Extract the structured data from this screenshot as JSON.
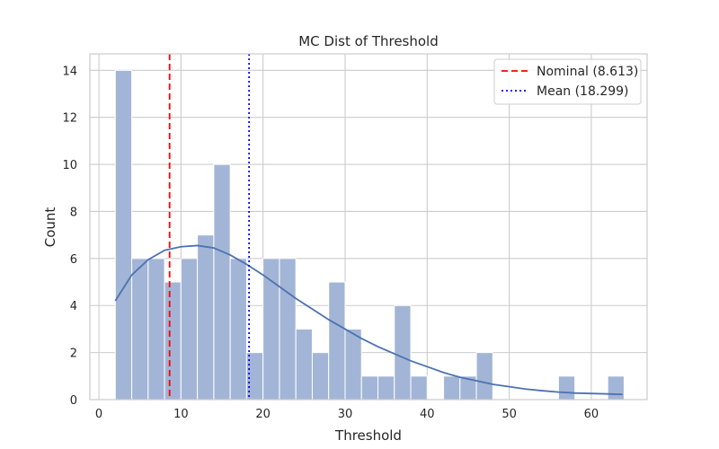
{
  "chart_data": {
    "type": "bar",
    "title": "MC Dist of Threshold",
    "xlabel": "Threshold",
    "ylabel": "Count",
    "xlim": [
      -1.1,
      66.8
    ],
    "ylim": [
      0,
      14.7
    ],
    "xticks": [
      0,
      10,
      20,
      30,
      40,
      50,
      60
    ],
    "yticks": [
      0,
      2,
      4,
      6,
      8,
      10,
      12,
      14
    ],
    "grid": true,
    "bin_start": 2.0,
    "bin_width": 2.0,
    "counts": [
      14,
      6,
      6,
      5,
      6,
      7,
      10,
      6,
      2,
      6,
      6,
      3,
      2,
      5,
      3,
      1,
      1,
      4,
      1,
      0,
      1,
      1,
      2,
      0,
      0,
      0,
      0,
      1,
      0,
      0,
      1
    ],
    "kde": {
      "x": [
        2,
        4,
        6,
        8,
        10,
        12,
        14,
        16,
        18,
        20,
        22,
        24,
        26,
        28,
        30,
        32,
        34,
        36,
        38,
        40,
        42,
        44,
        46,
        48,
        50,
        52,
        54,
        56,
        58,
        60,
        62,
        63.8
      ],
      "y": [
        4.2,
        5.3,
        5.95,
        6.35,
        6.5,
        6.55,
        6.45,
        6.15,
        5.75,
        5.3,
        4.8,
        4.3,
        3.85,
        3.4,
        3.0,
        2.6,
        2.25,
        1.95,
        1.65,
        1.4,
        1.15,
        0.95,
        0.8,
        0.65,
        0.55,
        0.45,
        0.38,
        0.32,
        0.28,
        0.26,
        0.24,
        0.22
      ]
    },
    "vlines": [
      {
        "name": "Nominal (8.613)",
        "value": 8.613,
        "color": "#ff0000",
        "style": "dashed"
      },
      {
        "name": "Mean (18.299)",
        "value": 18.299,
        "color": "#0000ff",
        "style": "dotted"
      }
    ],
    "legend_position": "top-right",
    "colors": {
      "bar_fill": "#a3b5d6",
      "bar_edge": "#ffffff",
      "kde_line": "#4c72b0",
      "grid": "#cccccc",
      "spine": "#cccccc"
    }
  }
}
